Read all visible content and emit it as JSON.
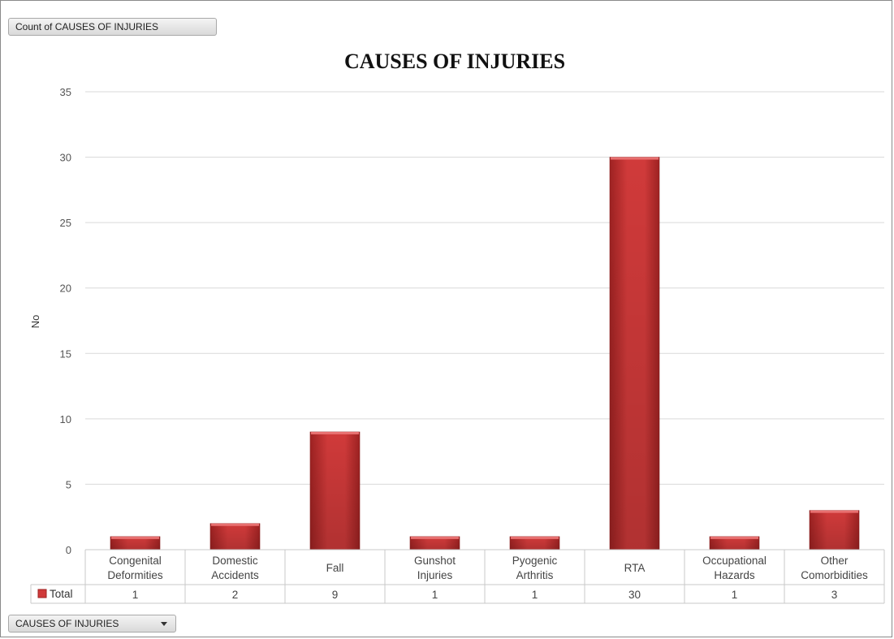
{
  "field_buttons": {
    "value_field": "Count of CAUSES OF INJURIES",
    "axis_field": "CAUSES OF INJURIES"
  },
  "colors": {
    "bar_fill": "#d03a3a",
    "bar_dark": "#9e2222",
    "gridline": "#d9d9d9",
    "table_border": "#c8c8c8"
  },
  "chart_data": {
    "type": "bar",
    "title": "CAUSES OF INJURIES",
    "xlabel": "",
    "ylabel": "No",
    "ylim": [
      0,
      35
    ],
    "yticks": [
      0,
      5,
      10,
      15,
      20,
      25,
      30,
      35
    ],
    "grid": true,
    "categories": [
      [
        "Congenital",
        "Deformities"
      ],
      [
        "Domestic",
        "Accidents"
      ],
      [
        "Fall"
      ],
      [
        "Gunshot",
        "Injuries"
      ],
      [
        "Pyogenic",
        "Arthritis"
      ],
      [
        "RTA"
      ],
      [
        "Occupational",
        "Hazards"
      ],
      [
        "Other",
        "Comorbidities"
      ]
    ],
    "series": [
      {
        "name": "Total",
        "values": [
          1,
          2,
          9,
          1,
          1,
          30,
          1,
          3
        ]
      }
    ],
    "data_table": true
  }
}
